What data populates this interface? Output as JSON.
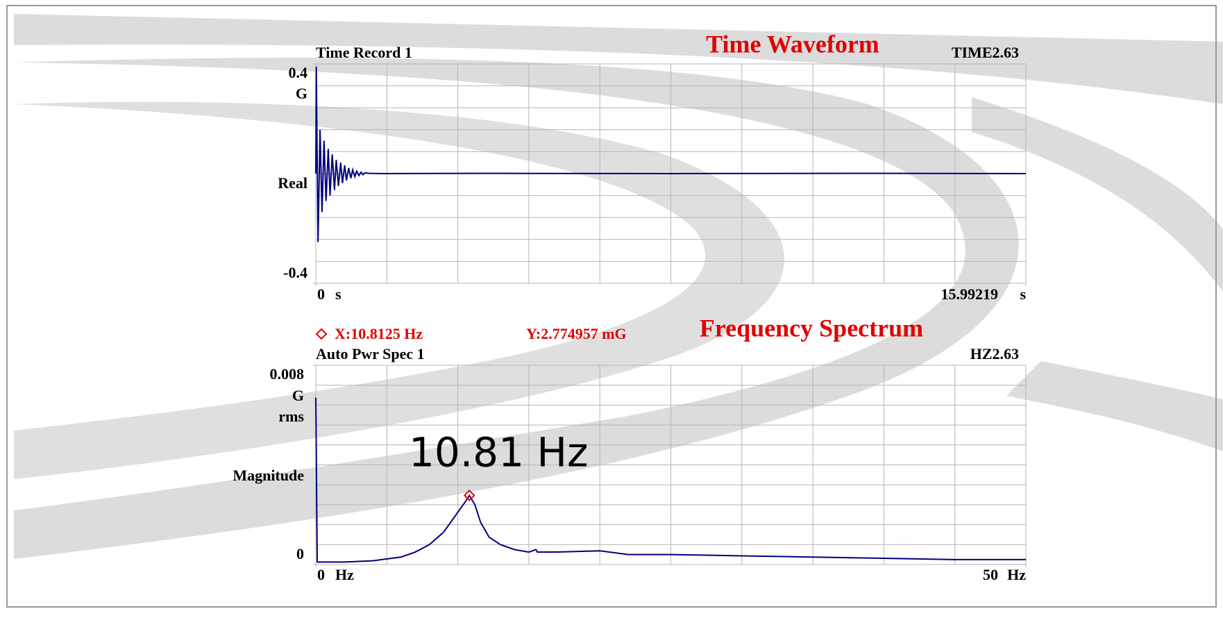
{
  "chart_data": [
    {
      "type": "line",
      "title": "Time Waveform",
      "trace_label": "Time Record 1",
      "trace_id": "TIME2.63",
      "y_label": "Real",
      "y_unit": [
        "G"
      ],
      "x_unit": "s",
      "color": "#000080",
      "grid": true,
      "xlim": [
        0,
        15.99219
      ],
      "xticks": [
        0,
        15.99219
      ],
      "ylim": [
        -0.4,
        0.4
      ],
      "yticks": [
        -0.4,
        0.4
      ],
      "x": [
        0,
        0.01,
        0.05,
        0.095,
        0.14,
        0.185,
        0.23,
        0.28,
        0.32,
        0.37,
        0.42,
        0.46,
        0.51,
        0.56,
        0.6,
        0.65,
        0.69,
        0.74,
        0.79,
        0.83,
        0.88,
        0.92,
        0.97,
        1.02,
        1.06,
        1.11,
        1.2,
        1.5,
        4,
        8,
        12,
        15.99219
      ],
      "values": [
        0,
        0.39,
        -0.25,
        0.16,
        -0.14,
        0.12,
        -0.1,
        0.09,
        -0.08,
        0.07,
        -0.06,
        0.05,
        -0.045,
        0.04,
        -0.035,
        0.03,
        -0.025,
        0.02,
        -0.017,
        0.014,
        -0.011,
        0.009,
        -0.007,
        0.005,
        -0.004,
        0.003,
        0.001,
        0,
        0.001,
        0,
        0.001,
        0
      ]
    },
    {
      "type": "line",
      "title": "Frequency Spectrum",
      "trace_label": "Auto Pwr Spec 1",
      "trace_id": "HZ2.63",
      "y_label": "Magnitude",
      "y_unit": [
        "G",
        "rms"
      ],
      "x_unit": "Hz",
      "color": "#000080",
      "grid": true,
      "xlim": [
        0,
        50
      ],
      "xticks": [
        0,
        50
      ],
      "ylim": [
        0,
        0.008
      ],
      "yticks": [
        0,
        0.008
      ],
      "x": [
        0,
        0.1,
        2,
        4,
        6,
        7,
        8,
        9,
        10,
        10.5,
        10.8125,
        11.2,
        11.6,
        12.2,
        13,
        14,
        15,
        15.5,
        15.6,
        17,
        20,
        22,
        25,
        30,
        35,
        40,
        45,
        50
      ],
      "values": [
        0.0067,
        0.0001,
        0.0001,
        0.00015,
        0.0003,
        0.0005,
        0.0008,
        0.0013,
        0.0021,
        0.0025,
        0.00277,
        0.0024,
        0.0017,
        0.0011,
        0.0008,
        0.0006,
        0.0005,
        0.0006,
        0.0005,
        0.0005,
        0.00055,
        0.0004,
        0.0004,
        0.00035,
        0.0003,
        0.00025,
        0.0002,
        0.0002
      ],
      "cursor": {
        "x": 10.8125,
        "y": 0.002774957,
        "x_label": "X:10.8125  Hz",
        "y_label": "Y:2.774957 mG",
        "color": "#e00000"
      },
      "peak_label": "10.81 Hz"
    }
  ]
}
